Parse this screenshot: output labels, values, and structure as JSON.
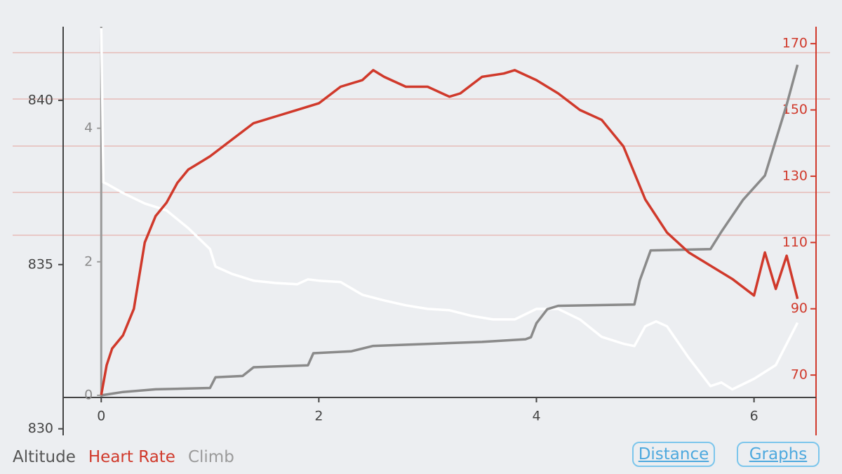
{
  "chart_data": {
    "type": "line",
    "xlim": [
      -0.35,
      6.57
    ],
    "xticks": [
      0,
      2,
      4,
      6
    ],
    "ylim": [
      829.8,
      842.2
    ],
    "yticks": [
      830,
      835,
      840
    ],
    "y2lim": [
      51.8,
      174.7
    ],
    "y2ticks": [
      70,
      90,
      110,
      130,
      150,
      170
    ],
    "y3lim": [
      -0.6,
      5.5
    ],
    "y3ticks": [
      0,
      2,
      4
    ],
    "series": [
      {
        "name": "Altitude",
        "color": "#ffffff",
        "axis": "y",
        "x": [
          0,
          0.02,
          0.05,
          0.2,
          0.4,
          0.6,
          0.8,
          1.0,
          1.05,
          1.2,
          1.4,
          1.6,
          1.8,
          1.9,
          2.0,
          2.2,
          2.4,
          2.6,
          2.8,
          3.0,
          3.2,
          3.4,
          3.6,
          3.8,
          4.0,
          4.2,
          4.4,
          4.6,
          4.8,
          4.9,
          5.0,
          5.1,
          5.2,
          5.4,
          5.6,
          5.7,
          5.8,
          6.0,
          6.2,
          6.4
        ],
        "values": [
          842.2,
          837.5,
          837.46,
          837.18,
          836.86,
          836.65,
          836.11,
          835.47,
          834.94,
          834.72,
          834.51,
          834.44,
          834.4,
          834.55,
          834.51,
          834.47,
          834.08,
          833.91,
          833.76,
          833.65,
          833.61,
          833.44,
          833.33,
          833.33,
          833.65,
          833.65,
          833.33,
          832.8,
          832.59,
          832.52,
          833.12,
          833.27,
          833.12,
          832.16,
          831.3,
          831.41,
          831.2,
          831.52,
          831.94,
          833.23
        ]
      },
      {
        "name": "Heart Rate",
        "color": "#d0392b",
        "axis": "y2",
        "x": [
          0,
          0.05,
          0.1,
          0.2,
          0.3,
          0.4,
          0.5,
          0.6,
          0.7,
          0.8,
          0.9,
          1.0,
          1.2,
          1.4,
          1.6,
          1.8,
          2.0,
          2.2,
          2.4,
          2.5,
          2.6,
          2.8,
          3.0,
          3.2,
          3.3,
          3.5,
          3.7,
          3.8,
          4.0,
          4.2,
          4.4,
          4.6,
          4.8,
          5.0,
          5.2,
          5.4,
          5.6,
          5.8,
          6.0,
          6.1,
          6.2,
          6.3,
          6.4
        ],
        "values": [
          64,
          73,
          78,
          82,
          90,
          110,
          118,
          122,
          128,
          132,
          134,
          136,
          141,
          146,
          148,
          150,
          152,
          157,
          159,
          162,
          160,
          157,
          157,
          154,
          155,
          160,
          161,
          162,
          159,
          155,
          150,
          147,
          139,
          123,
          113,
          107,
          103,
          99,
          94,
          107,
          96,
          106,
          93
        ]
      },
      {
        "name": "Climb",
        "color": "#8a8a8a",
        "axis": "y3",
        "x": [
          0,
          0.2,
          0.5,
          1.0,
          1.05,
          1.3,
          1.4,
          1.9,
          1.95,
          2.3,
          2.5,
          3.0,
          3.5,
          3.9,
          3.95,
          4.0,
          4.1,
          4.2,
          4.9,
          4.95,
          5.05,
          5.6,
          5.7,
          5.9,
          6.1,
          6.2,
          6.3,
          6.4
        ],
        "values": [
          0,
          0.05,
          0.09,
          0.11,
          0.27,
          0.29,
          0.42,
          0.45,
          0.63,
          0.66,
          0.74,
          0.77,
          0.8,
          0.84,
          0.87,
          1.08,
          1.29,
          1.34,
          1.36,
          1.72,
          2.17,
          2.19,
          2.45,
          2.93,
          3.29,
          3.82,
          4.35,
          4.95
        ]
      }
    ]
  },
  "buttons": [
    "Distance",
    "Graphs"
  ]
}
